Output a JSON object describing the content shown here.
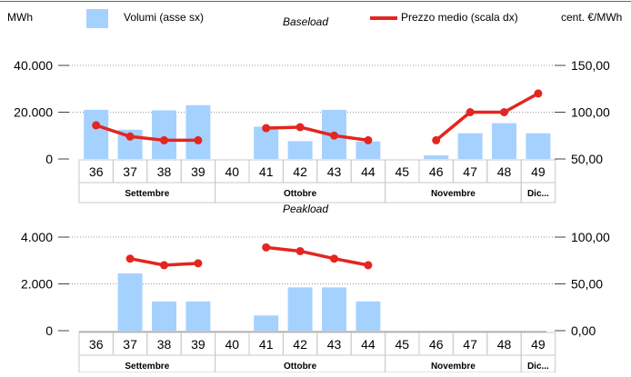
{
  "legend": {
    "left_unit": "MWh",
    "right_unit": "cent. €/MWh",
    "volumes_label": "Volumi (asse sx)",
    "price_label": "Prezzo medio (scala dx)",
    "volume_color": "#a5d1ff",
    "price_color": "#e32620"
  },
  "chart_data": [
    {
      "type": "bar+line",
      "title": "Baseload",
      "categories": [
        "36",
        "37",
        "38",
        "39",
        "40",
        "41",
        "42",
        "43",
        "44",
        "45",
        "46",
        "47",
        "48",
        "49"
      ],
      "month_groups": [
        {
          "label": "Settembre",
          "weeks": [
            "36",
            "37",
            "38",
            "39"
          ]
        },
        {
          "label": "Ottobre",
          "weeks": [
            "40",
            "41",
            "42",
            "43",
            "44"
          ]
        },
        {
          "label": "Novembre",
          "weeks": [
            "45",
            "46",
            "47",
            "48"
          ]
        },
        {
          "label": "Dic...",
          "weeks": [
            "49"
          ]
        }
      ],
      "series": [
        {
          "name": "Volumi (asse sx)",
          "axis": "left",
          "kind": "bar",
          "values": [
            21000,
            12500,
            20800,
            23000,
            0,
            13800,
            7600,
            21000,
            7500,
            0,
            1500,
            11000,
            15300,
            11000
          ]
        },
        {
          "name": "Prezzo medio (scala dx)",
          "axis": "right",
          "kind": "line",
          "values": [
            86,
            74,
            70,
            70,
            null,
            83,
            84,
            75,
            70,
            null,
            70,
            100,
            100,
            120
          ]
        }
      ],
      "left_axis": {
        "min": 0,
        "max": 40000,
        "ticks": [
          0,
          20000,
          40000
        ],
        "tick_labels": [
          "0",
          "20.000",
          "40.000"
        ]
      },
      "right_axis": {
        "min": 50,
        "max": 150,
        "ticks": [
          50,
          100,
          150
        ],
        "tick_labels": [
          "50,00",
          "100,00",
          "150,00"
        ]
      }
    },
    {
      "type": "bar+line",
      "title": "Peakload",
      "categories": [
        "36",
        "37",
        "38",
        "39",
        "40",
        "41",
        "42",
        "43",
        "44",
        "45",
        "46",
        "47",
        "48",
        "49"
      ],
      "month_groups": [
        {
          "label": "Settembre",
          "weeks": [
            "36",
            "37",
            "38",
            "39"
          ]
        },
        {
          "label": "Ottobre",
          "weeks": [
            "40",
            "41",
            "42",
            "43",
            "44"
          ]
        },
        {
          "label": "Novembre",
          "weeks": [
            "45",
            "46",
            "47",
            "48"
          ]
        },
        {
          "label": "Dic...",
          "weeks": [
            "49"
          ]
        }
      ],
      "series": [
        {
          "name": "Volumi (asse sx)",
          "axis": "left",
          "kind": "bar",
          "values": [
            0,
            2450,
            1250,
            1250,
            0,
            650,
            1850,
            1850,
            1250,
            0,
            0,
            0,
            0,
            0
          ]
        },
        {
          "name": "Prezzo medio (scala dx)",
          "axis": "right",
          "kind": "line",
          "values": [
            null,
            77,
            70,
            72,
            null,
            89,
            85,
            77,
            70,
            null,
            null,
            null,
            null,
            null
          ]
        }
      ],
      "left_axis": {
        "min": 0,
        "max": 4000,
        "ticks": [
          0,
          2000,
          4000
        ],
        "tick_labels": [
          "0",
          "2.000",
          "4.000"
        ]
      },
      "right_axis": {
        "min": 0,
        "max": 100,
        "ticks": [
          0,
          50,
          100
        ],
        "tick_labels": [
          "0,00",
          "50,00",
          "100,00"
        ]
      }
    }
  ]
}
